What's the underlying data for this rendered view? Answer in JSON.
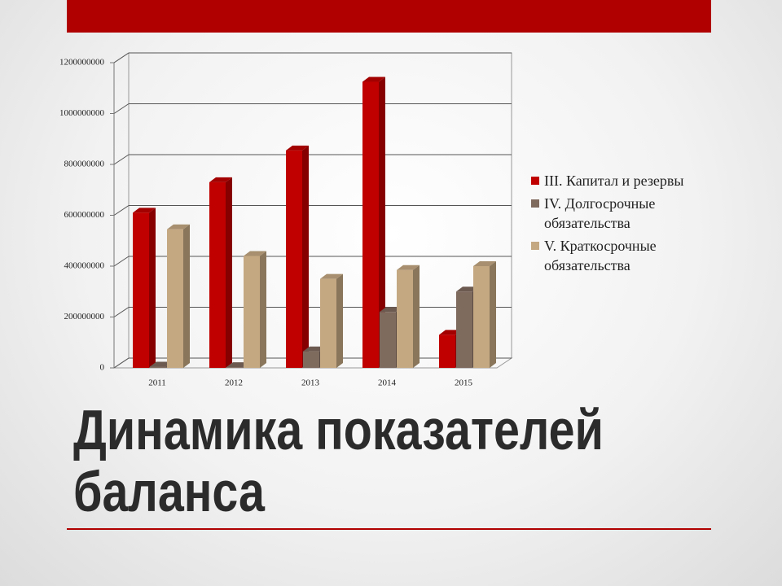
{
  "chart_data": {
    "type": "bar3d",
    "title": "Динамика показателей баланса",
    "categories": [
      "2011",
      "2012",
      "2013",
      "2014",
      "2015"
    ],
    "series": [
      {
        "name": "III. Капитал и резервы",
        "color": "#c00000",
        "values": [
          610000000,
          730000000,
          855000000,
          1125000000,
          130000000
        ]
      },
      {
        "name": "IV. Долгосрочные обязательства",
        "color": "#7f6a5e",
        "values": [
          5000000,
          3000000,
          65000000,
          220000000,
          300000000
        ]
      },
      {
        "name": "V. Краткосрочные обязательства",
        "color": "#c4a882",
        "values": [
          545000000,
          440000000,
          350000000,
          385000000,
          400000000
        ]
      }
    ],
    "ylim": [
      0,
      1200000000
    ],
    "yticks": [
      0,
      200000000,
      400000000,
      600000000,
      800000000,
      1000000000,
      1200000000
    ],
    "grid": true,
    "legend": "right"
  }
}
